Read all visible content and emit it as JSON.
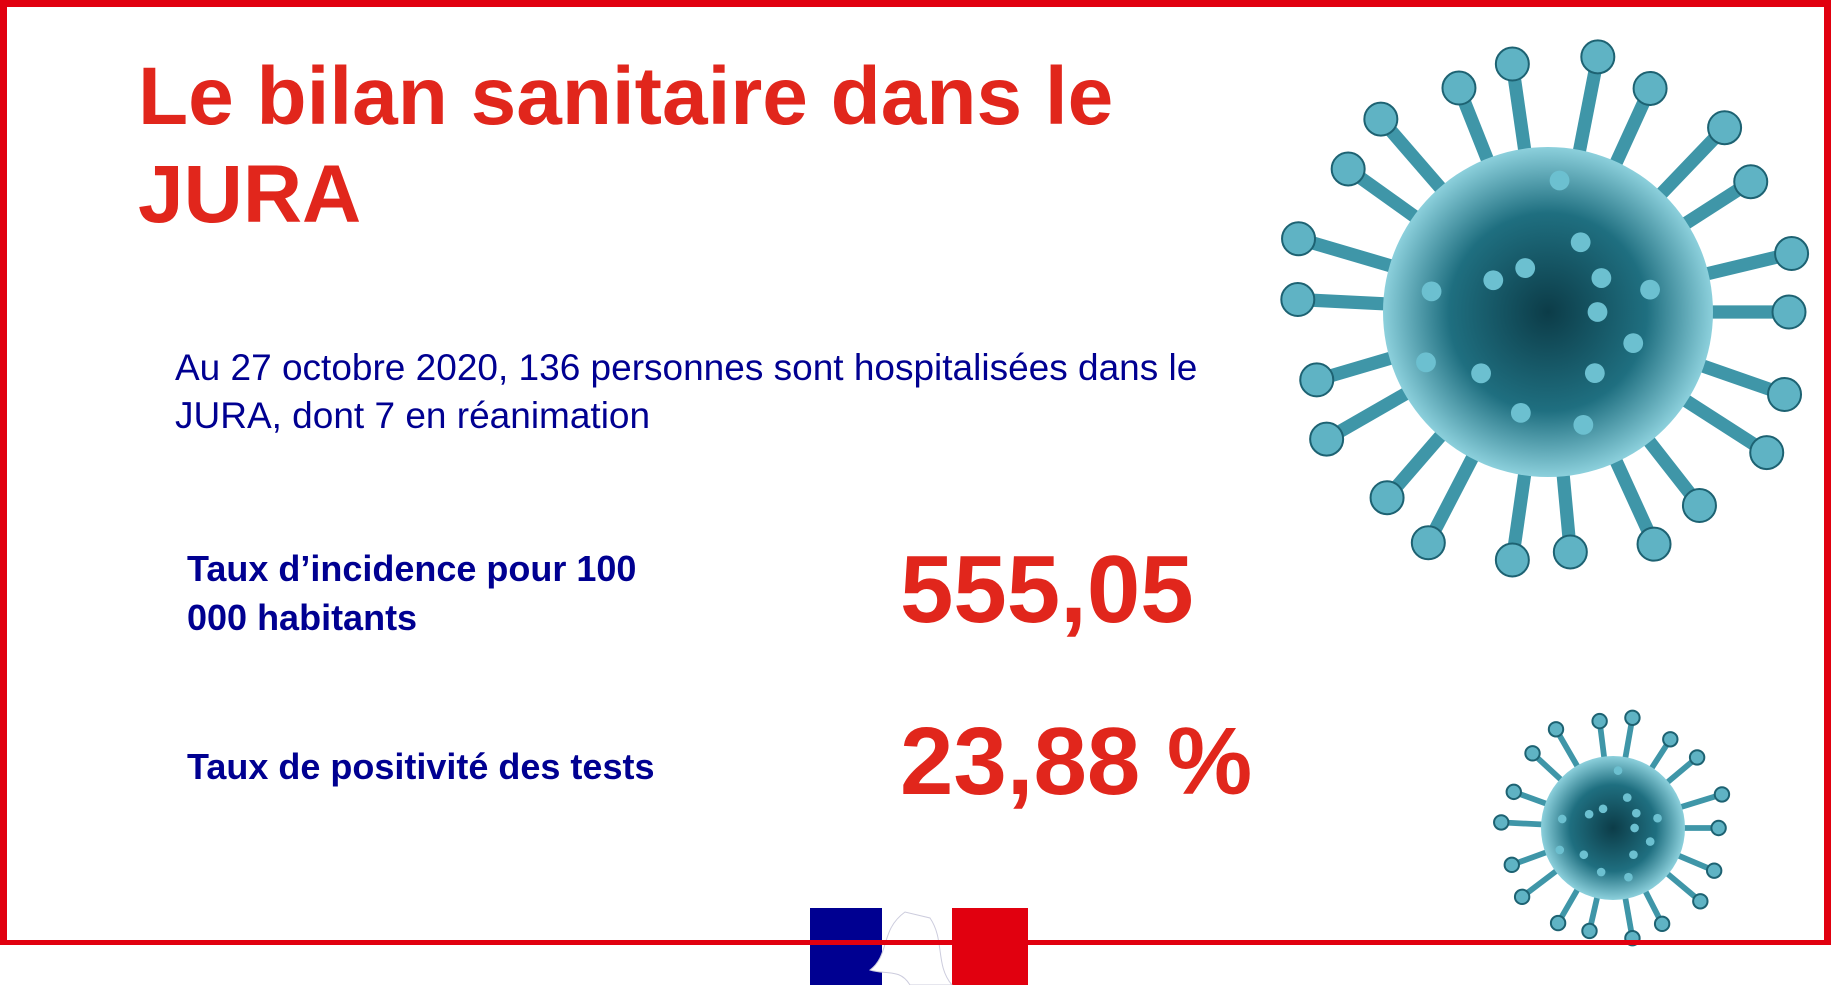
{
  "header": {
    "title": "Le bilan sanitaire dans le JURA"
  },
  "intro": "Au 27 octobre 2020, 136 personnes sont hospitalisées dans le JURA, dont 7 en réanimation",
  "stats": [
    {
      "label": "Taux d’incidence pour 100 000 habitants",
      "value": "555,05"
    },
    {
      "label": "Taux de positivité des tests",
      "value": "23,88 %"
    }
  ]
}
